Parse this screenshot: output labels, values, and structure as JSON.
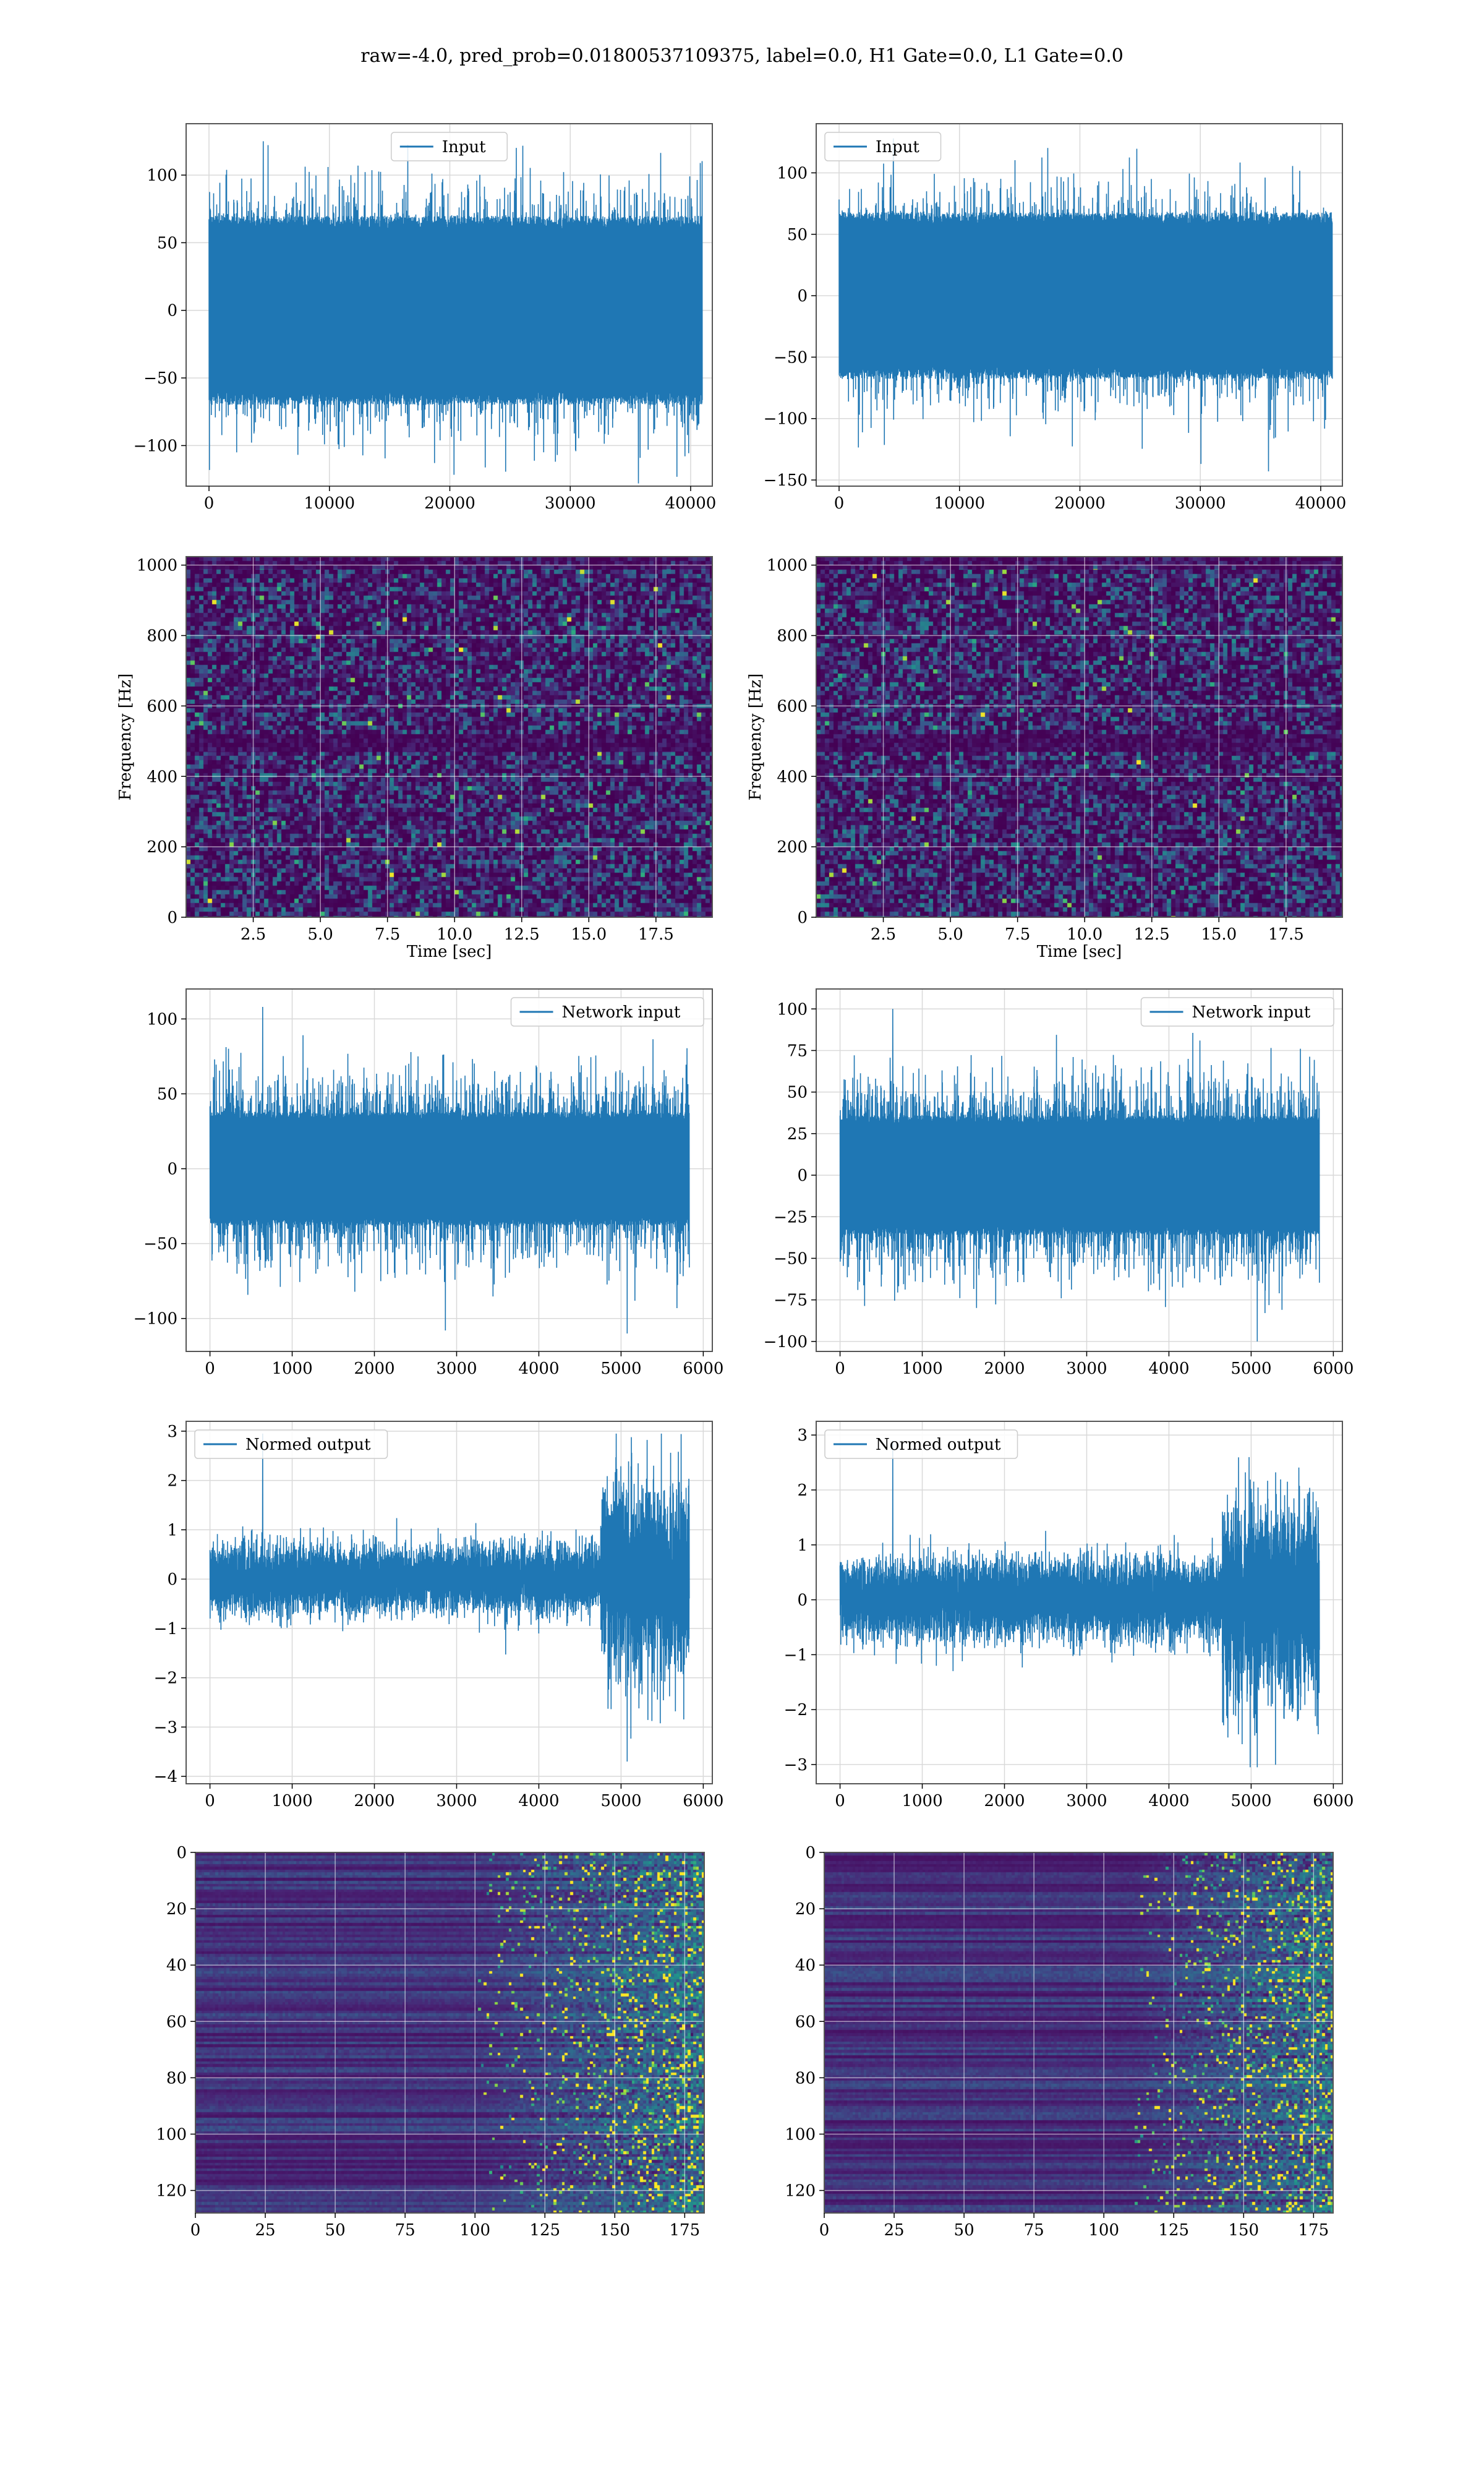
{
  "title": "raw=-4.0, pred_prob=0.01800537109375, label=0.0, H1 Gate=0.0, L1 Gate=0.0",
  "colors": {
    "line": "#1f77b4",
    "grid": "#d9d9d9",
    "axes": "#555555",
    "viridis_low": "#440154",
    "viridis_mid": "#21918c",
    "viridis_high": "#fde725"
  },
  "chart_data": [
    {
      "id": "input-h1",
      "type": "line",
      "legend": "Input",
      "legend_loc": "upper center",
      "xlabel": "",
      "ylabel": "",
      "xlim": [
        -1900,
        41800
      ],
      "ylim": [
        -130,
        138
      ],
      "xticks": [
        0,
        10000,
        20000,
        30000,
        40000
      ],
      "yticks": [
        -100,
        -50,
        0,
        50,
        100
      ],
      "series": [
        {
          "n": 40960,
          "x_range": [
            0,
            40960
          ],
          "std": 36,
          "envelope_max": 70,
          "peak_max": 125,
          "peak_min": -128
        }
      ]
    },
    {
      "id": "input-l1",
      "type": "line",
      "legend": "Input",
      "legend_loc": "upper left",
      "xlabel": "",
      "ylabel": "",
      "xlim": [
        -1900,
        41800
      ],
      "ylim": [
        -155,
        140
      ],
      "xticks": [
        0,
        10000,
        20000,
        30000,
        40000
      ],
      "yticks": [
        -150,
        -100,
        -50,
        0,
        50,
        100
      ],
      "series": [
        {
          "n": 40960,
          "x_range": [
            0,
            40960
          ],
          "std": 35,
          "envelope_max": 68,
          "peak_max": 128,
          "peak_min": -143
        }
      ]
    },
    {
      "id": "spectrogram-h1",
      "type": "heatmap",
      "xlabel": "Time [sec]",
      "ylabel": "Frequency [Hz]",
      "xlim": [
        0.0,
        19.6
      ],
      "ylim": [
        0,
        1024
      ],
      "xticks": [
        2.5,
        5.0,
        7.5,
        10.0,
        12.5,
        15.0,
        17.5
      ],
      "yticks": [
        0,
        200,
        400,
        600,
        800,
        1000
      ],
      "colormap": "viridis"
    },
    {
      "id": "spectrogram-l1",
      "type": "heatmap",
      "xlabel": "Time [sec]",
      "ylabel": "Frequency [Hz]",
      "xlim": [
        0.0,
        19.6
      ],
      "ylim": [
        0,
        1024
      ],
      "xticks": [
        2.5,
        5.0,
        7.5,
        10.0,
        12.5,
        15.0,
        17.5
      ],
      "yticks": [
        0,
        200,
        400,
        600,
        800,
        1000
      ],
      "colormap": "viridis"
    },
    {
      "id": "network-input-h1",
      "type": "line",
      "legend": "Network input",
      "legend_loc": "upper right",
      "xlabel": "",
      "ylabel": "",
      "xlim": [
        -290,
        6110
      ],
      "ylim": [
        -122,
        120
      ],
      "xticks": [
        0,
        1000,
        2000,
        3000,
        4000,
        5000,
        6000
      ],
      "yticks": [
        -100,
        -50,
        0,
        50,
        100
      ],
      "series": [
        {
          "n": 5832,
          "x_range": [
            0,
            5832
          ],
          "std": 25,
          "envelope_max": 38,
          "peak_max": 108,
          "peak_min": -110
        }
      ]
    },
    {
      "id": "network-input-l1",
      "type": "line",
      "legend": "Network input",
      "legend_loc": "upper right",
      "xlabel": "",
      "ylabel": "",
      "xlim": [
        -290,
        6110
      ],
      "ylim": [
        -106,
        112
      ],
      "xticks": [
        0,
        1000,
        2000,
        3000,
        4000,
        5000,
        6000
      ],
      "yticks": [
        -100,
        -75,
        -50,
        -25,
        0,
        25,
        50,
        75,
        100
      ],
      "series": [
        {
          "n": 5832,
          "x_range": [
            0,
            5832
          ],
          "std": 24,
          "envelope_max": 36,
          "peak_max": 100,
          "peak_min": -100
        }
      ]
    },
    {
      "id": "normed-output-h1",
      "type": "line",
      "legend": "Normed output",
      "legend_loc": "upper left",
      "xlabel": "",
      "ylabel": "",
      "xlim": [
        -290,
        6110
      ],
      "ylim": [
        -4.15,
        3.2
      ],
      "xticks": [
        0,
        1000,
        2000,
        3000,
        4000,
        5000,
        6000
      ],
      "yticks": [
        -4,
        -3,
        -2,
        -1,
        0,
        1,
        2,
        3
      ],
      "series": [
        {
          "n": 5832,
          "x_range": [
            0,
            5832
          ],
          "std": 0.33,
          "burst_start": 4750,
          "burst_std": 0.95,
          "peak_max": 2.95,
          "peak_min": -3.7
        }
      ]
    },
    {
      "id": "normed-output-l1",
      "type": "line",
      "legend": "Normed output",
      "legend_loc": "upper left",
      "xlabel": "",
      "ylabel": "",
      "xlim": [
        -290,
        6110
      ],
      "ylim": [
        -3.35,
        3.25
      ],
      "xticks": [
        0,
        1000,
        2000,
        3000,
        4000,
        5000,
        6000
      ],
      "yticks": [
        -3,
        -2,
        -1,
        0,
        1,
        2,
        3
      ],
      "series": [
        {
          "n": 5832,
          "x_range": [
            0,
            5832
          ],
          "std": 0.35,
          "burst_start": 4650,
          "burst_std": 0.85,
          "peak_max": 2.9,
          "peak_min": -3.05
        }
      ]
    },
    {
      "id": "feature-map-h1",
      "type": "heatmap",
      "xlabel": "",
      "ylabel": "",
      "xlim": [
        0,
        182
      ],
      "ylim": [
        128,
        0
      ],
      "xticks": [
        0,
        25,
        50,
        75,
        100,
        125,
        150,
        175
      ],
      "yticks": [
        0,
        20,
        40,
        60,
        80,
        100,
        120
      ],
      "colormap": "viridis",
      "activation_onset": 100
    },
    {
      "id": "feature-map-l1",
      "type": "heatmap",
      "xlabel": "",
      "ylabel": "",
      "xlim": [
        0,
        182
      ],
      "ylim": [
        128,
        0
      ],
      "xticks": [
        0,
        25,
        50,
        75,
        100,
        125,
        150,
        175
      ],
      "yticks": [
        0,
        20,
        40,
        60,
        80,
        100,
        120
      ],
      "colormap": "viridis",
      "activation_onset": 110
    }
  ]
}
